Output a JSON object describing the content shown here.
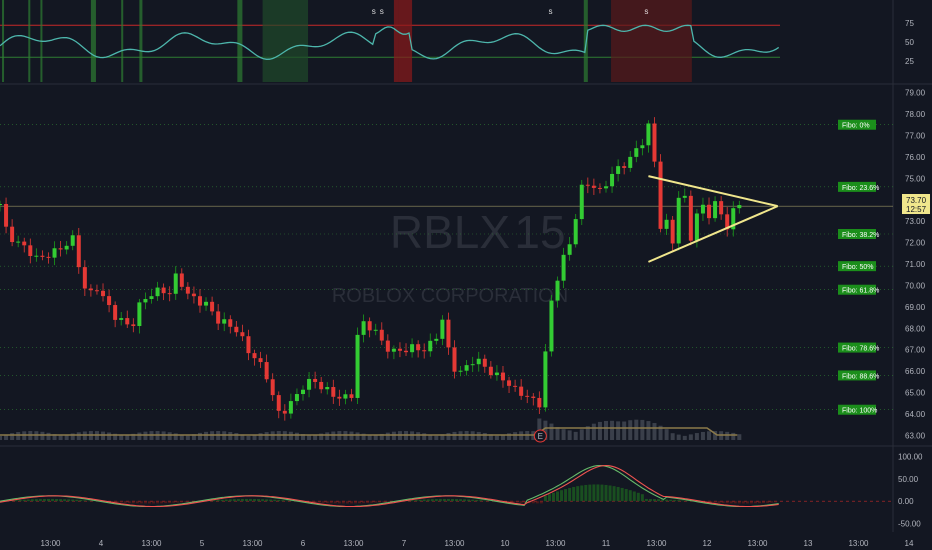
{
  "chart_data": {
    "type": "candlestick",
    "symbol": "RBLX",
    "interval": "15",
    "company": "ROBLOX CORPORATION",
    "price": {
      "last": "73.70",
      "countdown": "12:57",
      "ylim": [
        62.6,
        79.4
      ]
    },
    "y_ticks": [
      "63.00",
      "64.00",
      "65.00",
      "66.00",
      "67.00",
      "68.00",
      "69.00",
      "70.00",
      "71.00",
      "72.00",
      "73.00",
      "74.00",
      "75.00",
      "76.00",
      "77.00",
      "78.00",
      "79.00"
    ],
    "x_ticks": [
      {
        "label": "13:00",
        "at": 0.5
      },
      {
        "label": "4",
        "at": 1.0
      },
      {
        "label": "13:00",
        "at": 1.5
      },
      {
        "label": "5",
        "at": 2.0
      },
      {
        "label": "13:00",
        "at": 2.5
      },
      {
        "label": "6",
        "at": 3.0
      },
      {
        "label": "13:00",
        "at": 3.5
      },
      {
        "label": "7",
        "at": 4.0
      },
      {
        "label": "13:00",
        "at": 4.5
      },
      {
        "label": "10",
        "at": 5.0
      },
      {
        "label": "13:00",
        "at": 5.5
      },
      {
        "label": "11",
        "at": 6.0
      },
      {
        "label": "13:00",
        "at": 6.5
      },
      {
        "label": "12",
        "at": 7.0
      },
      {
        "label": "13:00",
        "at": 7.5
      },
      {
        "label": "13",
        "at": 8.0
      },
      {
        "label": "13:00",
        "at": 8.5
      },
      {
        "label": "14",
        "at": 9.0
      }
    ],
    "fibo_levels": [
      {
        "label": "Fibo:  0%",
        "price": 77.5
      },
      {
        "label": "Fibo: 23.6%",
        "price": 74.6
      },
      {
        "label": "Fibo: 38.2%",
        "price": 72.4
      },
      {
        "label": "Fibo:  50%",
        "price": 70.9
      },
      {
        "label": "Fibo: 61.8%",
        "price": 69.8
      },
      {
        "label": "Fibo: 78.6%",
        "price": 67.1
      },
      {
        "label": "Fibo: 88.6%",
        "price": 65.8
      },
      {
        "label": "Fibo: 100%",
        "price": 64.2
      }
    ],
    "price_path": [
      [
        0.0,
        73.8
      ],
      [
        0.07,
        72.4
      ],
      [
        0.17,
        72.0
      ],
      [
        0.27,
        71.7
      ],
      [
        0.37,
        71.2
      ],
      [
        0.45,
        71.4
      ],
      [
        0.52,
        71.5
      ],
      [
        0.65,
        71.9
      ],
      [
        0.73,
        72.2
      ],
      [
        0.8,
        70.5
      ],
      [
        0.87,
        69.4
      ],
      [
        0.95,
        70.0
      ],
      [
        1.05,
        69.2
      ],
      [
        1.15,
        68.5
      ],
      [
        1.25,
        68.2
      ],
      [
        1.3,
        68.0
      ],
      [
        1.4,
        69.3
      ],
      [
        1.5,
        69.6
      ],
      [
        1.6,
        69.8
      ],
      [
        1.7,
        69.6
      ],
      [
        1.75,
        70.6
      ],
      [
        1.85,
        69.6
      ],
      [
        1.95,
        69.3
      ],
      [
        2.05,
        69.1
      ],
      [
        2.15,
        68.4
      ],
      [
        2.25,
        68.2
      ],
      [
        2.35,
        67.9
      ],
      [
        2.45,
        67.0
      ],
      [
        2.55,
        66.5
      ],
      [
        2.65,
        65.7
      ],
      [
        2.75,
        64.0
      ],
      [
        2.82,
        64.2
      ],
      [
        2.9,
        64.6
      ],
      [
        3.0,
        65.3
      ],
      [
        3.1,
        65.6
      ],
      [
        3.2,
        65.2
      ],
      [
        3.3,
        64.9
      ],
      [
        3.4,
        64.7
      ],
      [
        3.48,
        64.9
      ],
      [
        3.52,
        67.5
      ],
      [
        3.6,
        68.2
      ],
      [
        3.7,
        68.0
      ],
      [
        3.8,
        67.2
      ],
      [
        3.9,
        66.9
      ],
      [
        4.0,
        67.0
      ],
      [
        4.1,
        67.1
      ],
      [
        4.2,
        67.0
      ],
      [
        4.3,
        67.4
      ],
      [
        4.38,
        68.4
      ],
      [
        4.42,
        68.1
      ],
      [
        4.45,
        66.4
      ],
      [
        4.55,
        65.9
      ],
      [
        4.62,
        66.2
      ],
      [
        4.7,
        66.6
      ],
      [
        4.8,
        66.2
      ],
      [
        4.9,
        65.8
      ],
      [
        5.0,
        65.6
      ],
      [
        5.1,
        65.1
      ],
      [
        5.2,
        64.9
      ],
      [
        5.28,
        64.6
      ],
      [
        5.33,
        64.1
      ],
      [
        5.38,
        66.0
      ],
      [
        5.45,
        69.0
      ],
      [
        5.55,
        71.0
      ],
      [
        5.65,
        72.0
      ],
      [
        5.75,
        74.5
      ],
      [
        5.85,
        74.8
      ],
      [
        5.95,
        74.3
      ],
      [
        6.05,
        75.2
      ],
      [
        6.15,
        75.5
      ],
      [
        6.25,
        76.0
      ],
      [
        6.35,
        76.6
      ],
      [
        6.45,
        77.8
      ],
      [
        6.52,
        73.0
      ],
      [
        6.58,
        72.4
      ],
      [
        6.62,
        73.4
      ],
      [
        6.66,
        72.0
      ],
      [
        6.72,
        74.2
      ],
      [
        6.78,
        74.0
      ],
      [
        6.84,
        72.2
      ],
      [
        6.9,
        73.4
      ],
      [
        6.96,
        73.6
      ],
      [
        7.02,
        73.3
      ],
      [
        7.08,
        73.9
      ],
      [
        7.14,
        73.2
      ],
      [
        7.2,
        72.8
      ],
      [
        7.26,
        73.5
      ],
      [
        7.32,
        73.7
      ]
    ],
    "triangle": {
      "upper": [
        [
          6.42,
          75.1
        ],
        [
          7.7,
          73.7
        ]
      ],
      "lower": [
        [
          6.42,
          71.1
        ],
        [
          7.7,
          73.7
        ]
      ]
    },
    "hline": 73.7,
    "earnings_marker": {
      "label": "E",
      "at": 5.35
    },
    "oscillator_top": {
      "ticks": [
        "75",
        "50",
        "25"
      ],
      "band": [
        30,
        72
      ]
    },
    "oscillator_bottom": {
      "ticks": [
        "100.00",
        "50.00",
        "0.00",
        "-50.00"
      ]
    },
    "signals": [
      {
        "label": "S",
        "at": 3.7
      },
      {
        "label": "S",
        "at": 3.78
      },
      {
        "label": "S",
        "at": 5.45
      },
      {
        "label": "S",
        "at": 6.4
      }
    ]
  }
}
